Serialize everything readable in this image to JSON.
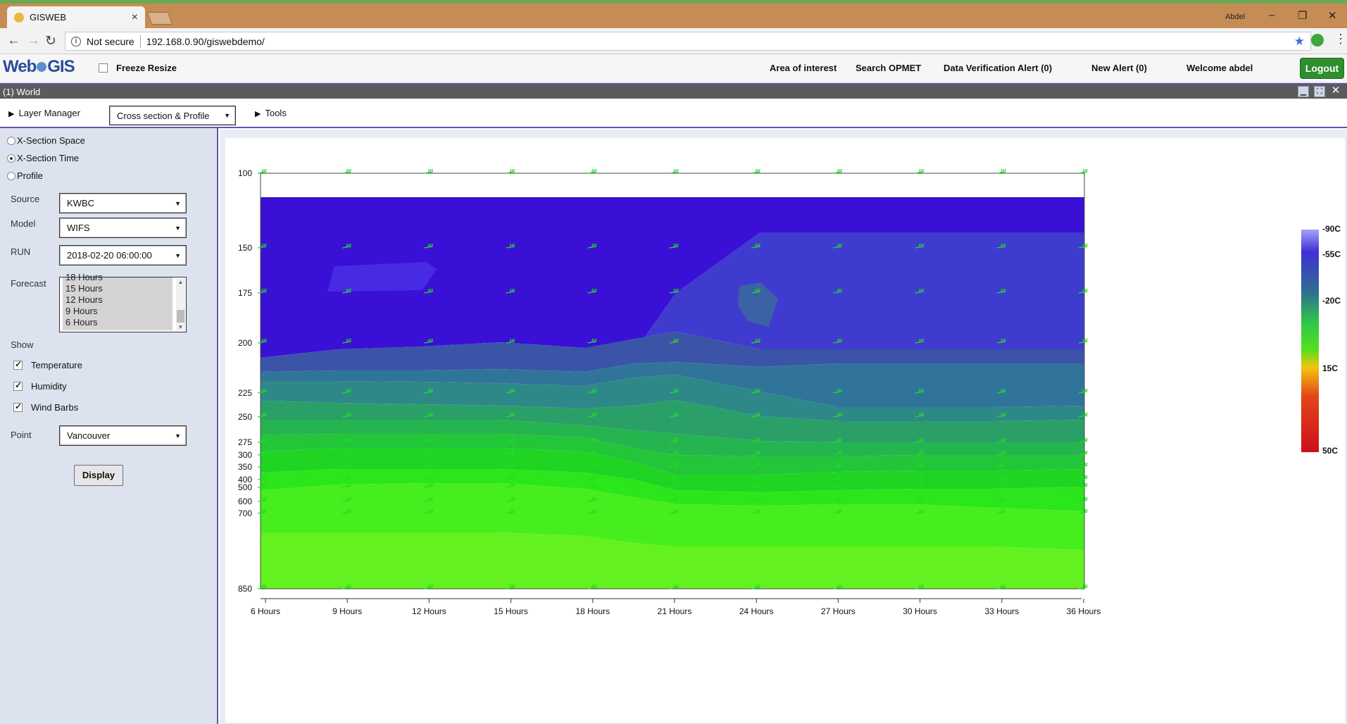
{
  "browser": {
    "tab_title": "GISWEB",
    "window_user": "Abdel",
    "url_prefix": "Not secure",
    "url": "192.168.0.90/giswebdemo/"
  },
  "header": {
    "logo_text_a": "Web",
    "logo_text_b": "GIS",
    "freeze_resize": "Freeze Resize",
    "links": [
      "Area of interest",
      "Search OPMET",
      "Data Verification Alert (0)",
      "New Alert (0)",
      "Welcome abdel"
    ],
    "logout": "Logout"
  },
  "window": {
    "title": "(1) World",
    "layer_manager": "Layer Manager",
    "mode_select": "Cross section & Profile",
    "tools": "Tools"
  },
  "panel": {
    "modes": [
      "X-Section Space",
      "X-Section Time",
      "Profile"
    ],
    "selected_mode": "X-Section Time",
    "source_label": "Source",
    "source_value": "KWBC",
    "model_label": "Model",
    "model_value": "WIFS",
    "run_label": "RUN",
    "run_value": "2018-02-20 06:00:00",
    "forecast_label": "Forecast",
    "forecast_items": [
      "18 Hours",
      "15 Hours",
      "12 Hours",
      "9 Hours",
      "6 Hours"
    ],
    "show_label": "Show",
    "show_items": [
      {
        "label": "Temperature",
        "checked": true
      },
      {
        "label": "Humidity",
        "checked": true
      },
      {
        "label": "Wind Barbs",
        "checked": true
      }
    ],
    "point_label": "Point",
    "point_value": "Vancouver",
    "display_button": "Display"
  },
  "chart_data": {
    "type": "heatmap",
    "x_labels": [
      "6 Hours",
      "9 Hours",
      "12 Hours",
      "15 Hours",
      "18 Hours",
      "21 Hours",
      "24 Hours",
      "27 Hours",
      "30 Hours",
      "33 Hours",
      "36 Hours"
    ],
    "y_levels": [
      100,
      150,
      175,
      200,
      225,
      250,
      275,
      300,
      350,
      400,
      500,
      600,
      700,
      850
    ],
    "y_labels": [
      "100",
      "150",
      "175",
      "200",
      "225",
      "250",
      "275",
      "300",
      "350",
      "400",
      "500",
      "600",
      "700",
      "850"
    ],
    "color_scale": {
      "labels": [
        "-90C",
        "-55C",
        "-20C",
        "15C",
        "50C"
      ],
      "colors": [
        "#9d9df5",
        "#3f2fd6",
        "#2e6e8f",
        "#1ed81e",
        "#f2c40f",
        "#d4151a"
      ]
    },
    "temperature_bands": [
      "#3a10d6",
      "#3f3bcf",
      "#3b54a8",
      "#31749a",
      "#2e8888",
      "#2aa068",
      "#26b450",
      "#22c638",
      "#20d424",
      "#2be61a",
      "#45ee1c",
      "#63f21f"
    ],
    "barb_color": "#22dd22",
    "grid": false
  }
}
